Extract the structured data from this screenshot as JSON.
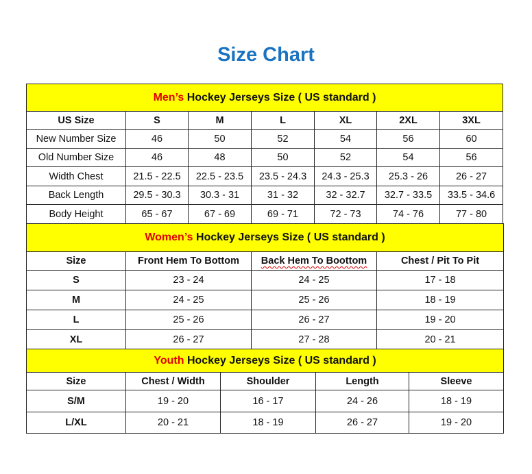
{
  "title": "Size Chart",
  "colors": {
    "title": "#1a73c0",
    "section_bg": "#ffff00",
    "highlight": "#e00000"
  },
  "mens": {
    "heading_highlight": "Men’s",
    "heading_rest": " Hockey Jerseys Size ( US standard )",
    "header": [
      "US Size",
      "S",
      "M",
      "L",
      "XL",
      "2XL",
      "3XL"
    ],
    "rows": [
      [
        "New Number Size",
        "46",
        "50",
        "52",
        "54",
        "56",
        "60"
      ],
      [
        "Old Number Size",
        "46",
        "48",
        "50",
        "52",
        "54",
        "56"
      ],
      [
        "Width Chest",
        "21.5 - 22.5",
        "22.5 - 23.5",
        "23.5 - 24.3",
        "24.3 - 25.3",
        "25.3 - 26",
        "26 - 27"
      ],
      [
        "Back Length",
        "29.5 - 30.3",
        "30.3 - 31",
        "31 - 32",
        "32 - 32.7",
        "32.7 - 33.5",
        "33.5 - 34.6"
      ],
      [
        "Body Height",
        "65 - 67",
        "67 - 69",
        "69 - 71",
        "72 - 73",
        "74 - 76",
        "77 - 80"
      ]
    ]
  },
  "womens": {
    "heading_highlight": "Women’s",
    "heading_rest": " Hockey Jerseys Size ( US standard )",
    "header": [
      "Size",
      "Front Hem To Bottom",
      "Back Hem To Boottom",
      "Chest / Pit To Pit"
    ],
    "rows": [
      [
        "S",
        "23 - 24",
        "24 - 25",
        "17 - 18"
      ],
      [
        "M",
        "24 - 25",
        "25 - 26",
        "18 - 19"
      ],
      [
        "L",
        "25 - 26",
        "26 - 27",
        "19 - 20"
      ],
      [
        "XL",
        "26 - 27",
        "27 - 28",
        "20 - 21"
      ]
    ]
  },
  "youth": {
    "heading_highlight": "Youth",
    "heading_rest": " Hockey Jerseys Size ( US standard )",
    "header": [
      "Size",
      "Chest / Width",
      "Shoulder",
      "Length",
      "Sleeve"
    ],
    "rows": [
      [
        "S/M",
        "19 - 20",
        "16 - 17",
        "24 - 26",
        "18 - 19"
      ],
      [
        "L/XL",
        "20 - 21",
        "18 - 19",
        "26 - 27",
        "19 - 20"
      ]
    ]
  }
}
